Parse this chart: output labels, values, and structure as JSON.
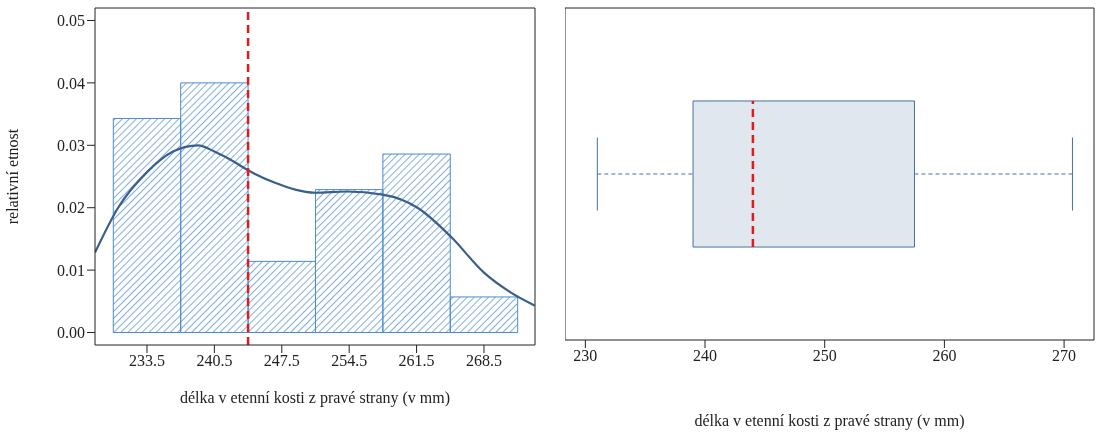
{
  "chart_data": [
    {
      "type": "histogram",
      "bins": [
        230,
        237,
        244,
        251,
        258,
        265,
        272
      ],
      "values": [
        0.0343,
        0.04,
        0.0114,
        0.0229,
        0.0286,
        0.0057
      ],
      "color": "#4a8ccf",
      "series": [
        {
          "type": "line",
          "color": "#3a5f8a",
          "x": [
            228.1,
            230.5,
            233.5,
            236.2,
            238.8,
            240.5,
            242.5,
            244,
            246.8,
            251,
            254.2,
            258,
            261.6,
            265.1,
            268.5,
            271.1,
            273.8
          ],
          "values": [
            0.0128,
            0.02,
            0.0257,
            0.029,
            0.03,
            0.029,
            0.0274,
            0.026,
            0.024,
            0.0224,
            0.0226,
            0.0221,
            0.02,
            0.0153,
            0.0096,
            0.0066,
            0.0043
          ]
        }
      ],
      "xlim": [
        228.1,
        273.8
      ],
      "xticks": [
        233.5,
        240.5,
        247.5,
        254.5,
        261.5,
        268.5
      ],
      "ylim": [
        -0.002,
        0.052
      ],
      "yticks": [
        {
          "value": 0,
          "label": "0.00"
        },
        {
          "value": 0.01,
          "label": "0.01"
        },
        {
          "value": 0.02,
          "label": "0.02"
        },
        {
          "value": 0.03,
          "label": "0.03"
        },
        {
          "value": 0.04,
          "label": "0.04"
        },
        {
          "value": 0.05,
          "label": "0.05"
        }
      ],
      "xlabel": "délka v etenní kosti z pravé strany (v mm)",
      "ylabel": "relativní  etnost",
      "ref_lines": [
        {
          "axis": "x",
          "value": 244,
          "color": "#e31a1c",
          "line_style": "dashed"
        }
      ]
    },
    {
      "type": "box",
      "orientation": "horizontal",
      "categories": [
        null
      ],
      "color": "#4a6f9a",
      "boxes": [
        {
          "low": 231,
          "q1": 239,
          "median": 244,
          "q3": 257.5,
          "high": 270.7
        }
      ],
      "xlim": [
        228.3,
        272.5
      ],
      "xticks": [
        230,
        240,
        250,
        260,
        270
      ],
      "tick_labels": "x",
      "xlabel": "délka v etenní kosti z pravé strany (v mm)"
    }
  ]
}
